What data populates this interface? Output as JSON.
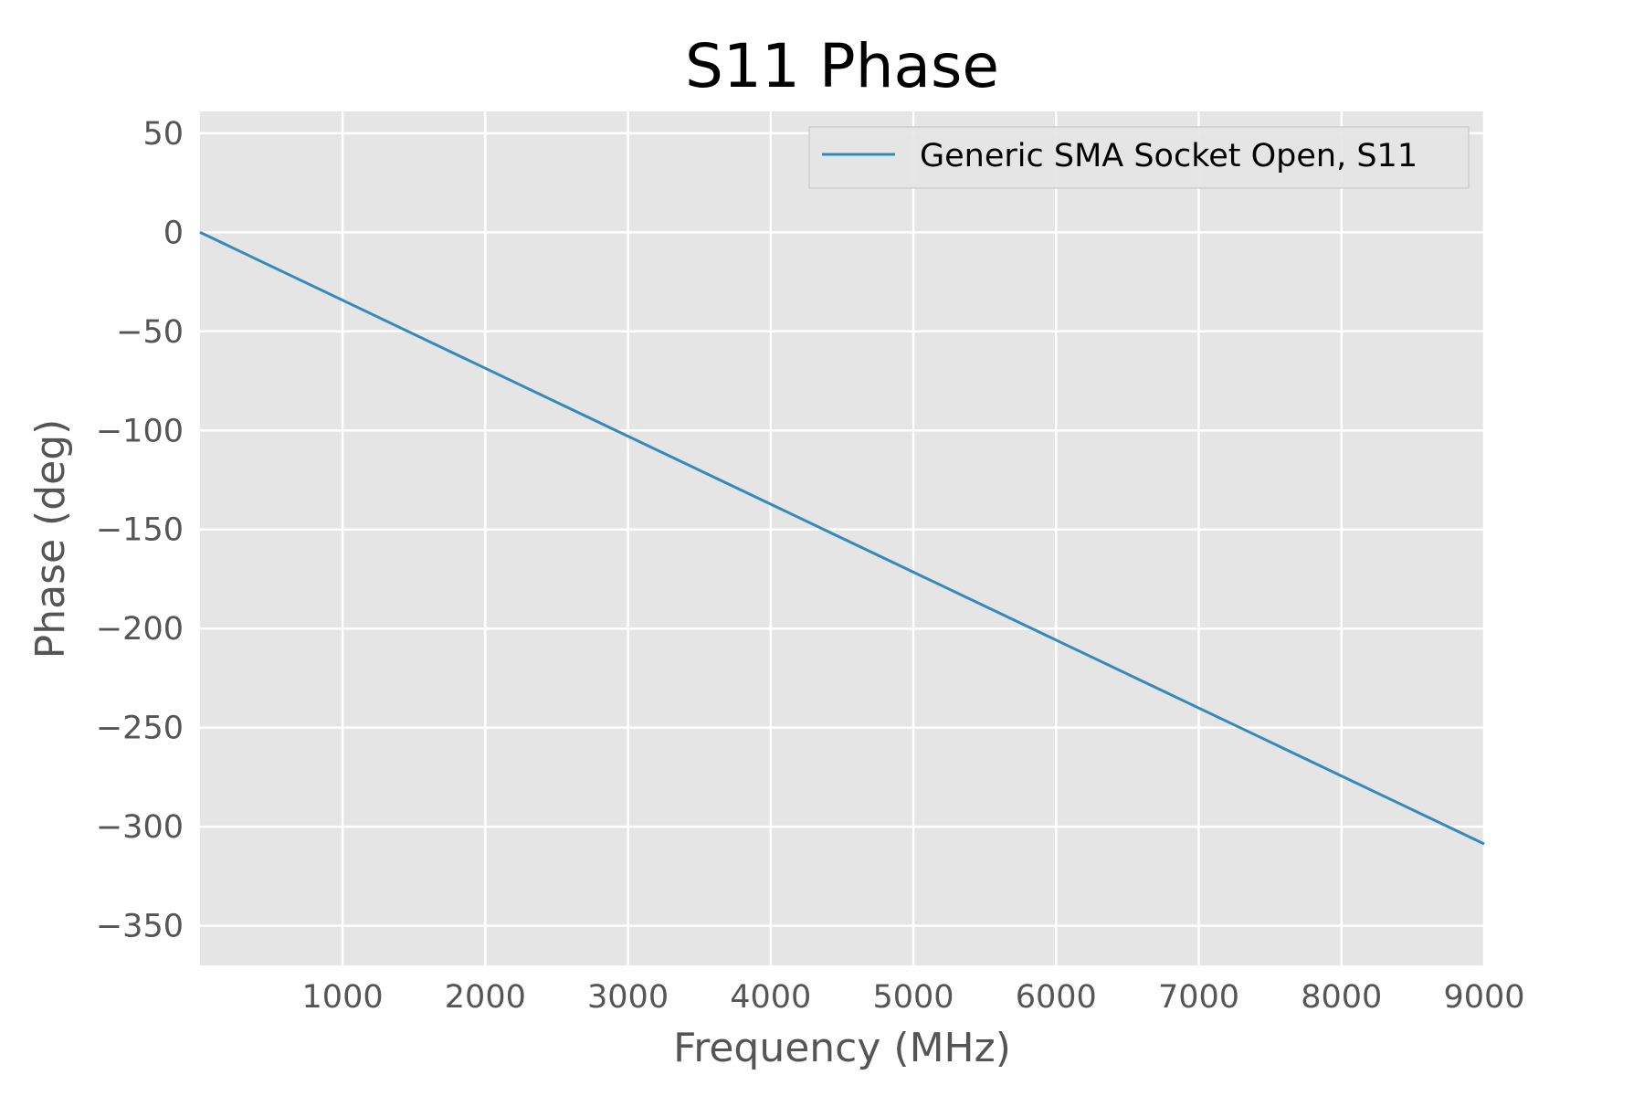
{
  "chart_data": {
    "type": "line",
    "title": "S11 Phase",
    "xlabel": "Frequency (MHz)",
    "ylabel": "Phase (deg)",
    "xlim": [
      1,
      9000
    ],
    "ylim": [
      -370,
      61
    ],
    "xticks": [
      1000,
      2000,
      3000,
      4000,
      5000,
      6000,
      7000,
      8000,
      9000
    ],
    "xtick_labels": [
      "1000",
      "2000",
      "3000",
      "4000",
      "5000",
      "6000",
      "7000",
      "8000",
      "9000"
    ],
    "yticks": [
      50,
      0,
      -50,
      -100,
      -150,
      -200,
      -250,
      -300,
      -350
    ],
    "ytick_labels": [
      "50",
      "0",
      "−50",
      "−100",
      "−150",
      "−200",
      "−250",
      "−300",
      "−350"
    ],
    "grid": true,
    "legend_position": "upper-right",
    "series": [
      {
        "name": "Generic SMA Socket Open, S11",
        "color": "#348abd",
        "x": [
          1,
          1000,
          2000,
          3000,
          4000,
          5000,
          6000,
          7000,
          8000,
          9000
        ],
        "y": [
          0,
          -34.3,
          -68.6,
          -102.9,
          -137.2,
          -171.5,
          -205.8,
          -240.1,
          -274.4,
          -308.7
        ]
      }
    ]
  },
  "colors": {
    "plot_background": "#e5e5e5",
    "grid": "#ffffff",
    "tick_text": "#555555"
  }
}
